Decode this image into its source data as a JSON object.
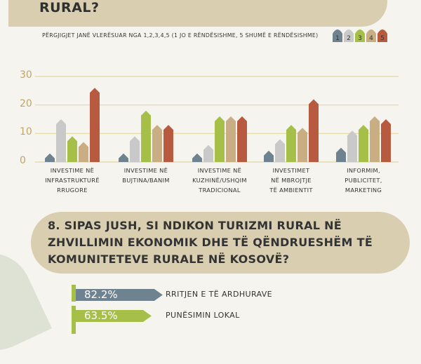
{
  "header": {
    "question_line": "RURAL?",
    "note": "PËRGJIGJET JANË VLERËSUAR NGA 1,2,3,4,5 (1 JO E RËNDËSISHME, 5 SHUMË E RËNDËSISHME)"
  },
  "legend": {
    "items": [
      {
        "label": "1",
        "color": "#6e8290"
      },
      {
        "label": "2",
        "color": "#c9c9c9"
      },
      {
        "label": "3",
        "color": "#a6bf48"
      },
      {
        "label": "4",
        "color": "#c9ad83"
      },
      {
        "label": "5",
        "color": "#b85a3f"
      }
    ]
  },
  "chart_data": {
    "type": "bar",
    "categories": [
      "INVESTIME NË INFRASTRUKTURË RRUGORE",
      "INVESTIME NË BUJTINA/BANIM",
      "INVESTIME NË KUZHINË/USHQIM TRADICIONAL",
      "INVESTIMET NË MBROJTJE TË AMBIENTIT",
      "INFORMIM, PUBLICITET, MARKETING"
    ],
    "category_lines": [
      [
        "INVESTIME NË",
        "INFRASTRUKTURË",
        "RRUGORE"
      ],
      [
        "INVESTIME NË",
        "BUJTINA/BANIM"
      ],
      [
        "INVESTIME NË",
        "KUZHINË/USHQIM",
        "TRADICIONAL"
      ],
      [
        "INVESTIMET",
        "NË MBROJTJE",
        "TË AMBIENTIT"
      ],
      [
        "INFORMIM,",
        "PUBLICITET,",
        "MARKETING"
      ]
    ],
    "series": [
      {
        "name": "1",
        "color": "#6e8290",
        "values": [
          3,
          3,
          3,
          4,
          5
        ]
      },
      {
        "name": "2",
        "color": "#c9c9c9",
        "values": [
          15,
          9,
          6,
          8,
          11
        ]
      },
      {
        "name": "3",
        "color": "#a6bf48",
        "values": [
          9,
          18,
          16,
          13,
          13
        ]
      },
      {
        "name": "4",
        "color": "#c9ad83",
        "values": [
          7,
          13,
          16,
          12,
          16
        ]
      },
      {
        "name": "5",
        "color": "#b85a3f",
        "values": [
          26,
          13,
          16,
          22,
          15
        ]
      }
    ],
    "yticks": [
      "0",
      "10",
      "20",
      "30"
    ],
    "ylim": [
      0,
      30
    ],
    "grid": true
  },
  "question8": {
    "text": "8. SIPAS JUSH, SI NDIKON TURIZMI RURAL NË ZHVILLIMIN EKONOMIK DHE TË QËNDRUESHËM TË KOMUNITETEVE RURALE NË KOSOVË?"
  },
  "answers": [
    {
      "percent": "82.2%",
      "label": "RRITJEN E TË ARDHURAVE",
      "value": 82.2,
      "color": "#6e8290"
    },
    {
      "percent": "63.5%",
      "label": "PUNËSIMIN LOKAL",
      "value": 63.5,
      "color": "#a6bf48"
    }
  ],
  "style": {
    "banner_color": "#d9ceb0",
    "grid_color": "#e3d89f",
    "tick_color": "#c0a56a",
    "background": "#f6f4ee"
  }
}
